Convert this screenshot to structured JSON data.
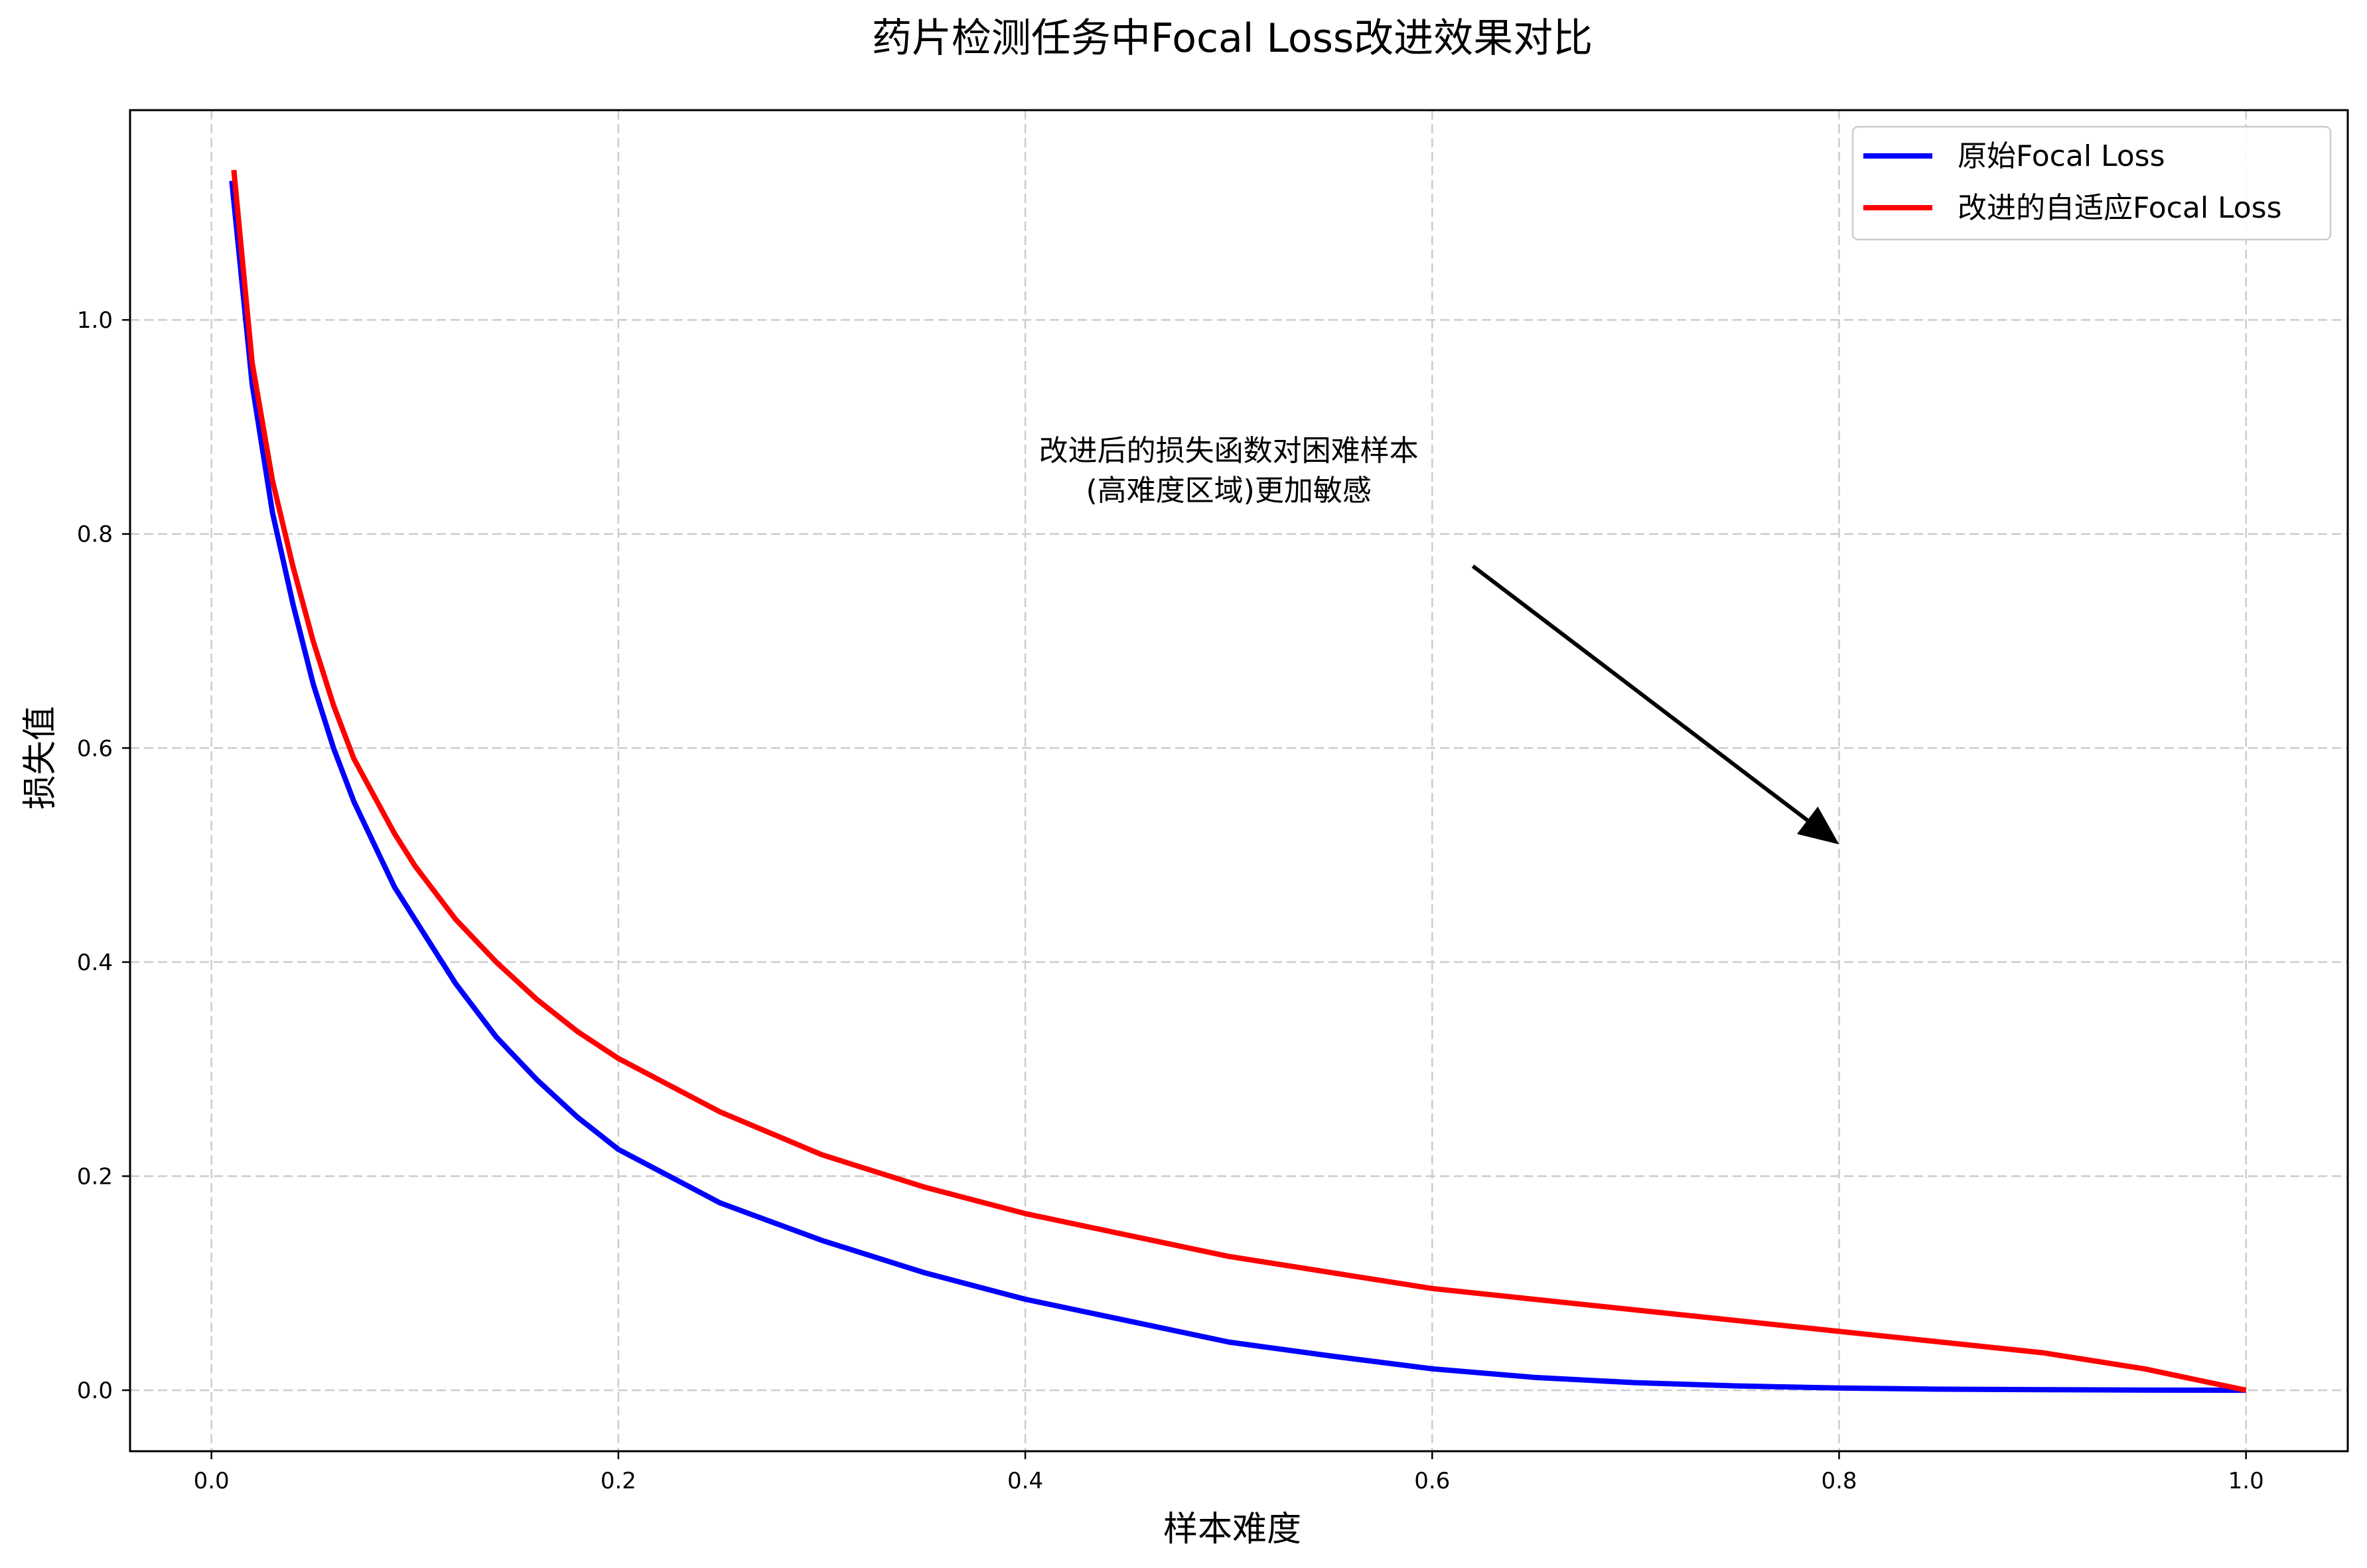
{
  "chart_data": {
    "type": "line",
    "title": "药片检测任务中Focal Loss改进效果对比",
    "xlabel": "样本难度",
    "ylabel": "损失值",
    "xlim": [
      -0.04,
      1.05
    ],
    "ylim": [
      -0.057,
      1.196
    ],
    "x_ticks": [
      0.0,
      0.2,
      0.4,
      0.6,
      0.8,
      1.0
    ],
    "x_tick_labels": [
      "0.0",
      "0.2",
      "0.4",
      "0.6",
      "0.8",
      "1.0"
    ],
    "y_ticks": [
      0.0,
      0.2,
      0.4,
      0.6,
      0.8,
      1.0
    ],
    "y_tick_labels": [
      "0.0",
      "0.2",
      "0.4",
      "0.6",
      "0.8",
      "1.0"
    ],
    "grid": true,
    "legend_position": "top-right",
    "series": [
      {
        "name": "原始Focal Loss",
        "color": "#0000ff",
        "x": [
          0.01,
          0.02,
          0.03,
          0.04,
          0.05,
          0.06,
          0.07,
          0.08,
          0.09,
          0.1,
          0.12,
          0.14,
          0.16,
          0.18,
          0.2,
          0.25,
          0.3,
          0.35,
          0.4,
          0.45,
          0.5,
          0.55,
          0.6,
          0.65,
          0.7,
          0.75,
          0.8,
          0.85,
          0.9,
          0.95,
          1.0
        ],
        "y": [
          1.13,
          0.94,
          0.82,
          0.735,
          0.66,
          0.6,
          0.55,
          0.51,
          0.47,
          0.44,
          0.38,
          0.33,
          0.29,
          0.255,
          0.225,
          0.175,
          0.14,
          0.11,
          0.085,
          0.065,
          0.045,
          0.032,
          0.02,
          0.012,
          0.007,
          0.004,
          0.002,
          0.001,
          0.0005,
          0.0001,
          0.0
        ]
      },
      {
        "name": "改进的自适应Focal Loss",
        "color": "#ff0000",
        "x": [
          0.011,
          0.02,
          0.03,
          0.04,
          0.05,
          0.06,
          0.07,
          0.08,
          0.09,
          0.1,
          0.12,
          0.14,
          0.16,
          0.18,
          0.2,
          0.25,
          0.3,
          0.35,
          0.4,
          0.45,
          0.5,
          0.55,
          0.6,
          0.65,
          0.7,
          0.75,
          0.8,
          0.85,
          0.9,
          0.95,
          1.0
        ],
        "y": [
          1.14,
          0.96,
          0.85,
          0.77,
          0.7,
          0.64,
          0.59,
          0.555,
          0.52,
          0.49,
          0.44,
          0.4,
          0.365,
          0.335,
          0.31,
          0.26,
          0.22,
          0.19,
          0.165,
          0.145,
          0.125,
          0.11,
          0.095,
          0.085,
          0.075,
          0.065,
          0.055,
          0.045,
          0.035,
          0.02,
          0.0
        ]
      }
    ],
    "annotation": {
      "lines": [
        "改进后的损失函数对困难样本",
        "(高难度区域)更加敏感"
      ],
      "text_anchor_data": [
        0.5,
        0.84
      ],
      "arrow_start_data": [
        0.62,
        0.77
      ],
      "arrow_end_data": [
        0.8,
        0.51
      ],
      "color": "#000000"
    }
  }
}
